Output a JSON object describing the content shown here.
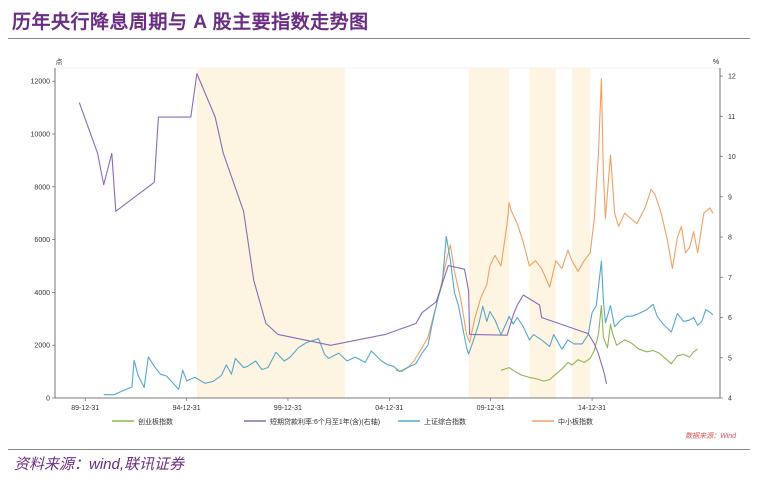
{
  "title": "历年央行降息周期与 A 股主要指数走势图",
  "footer": "资料来源：wind,联讯证券",
  "chart_data": {
    "type": "line",
    "x_tick_labels": [
      "89-12-31",
      "94-12-31",
      "99-12-31",
      "04-12-31",
      "09-12-31",
      "14-12-31"
    ],
    "left_axis": {
      "unit": "点",
      "ticks": [
        0,
        2000,
        4000,
        6000,
        8000,
        10000,
        12000
      ],
      "ylim": [
        0,
        12500
      ]
    },
    "right_axis": {
      "unit": "%",
      "ticks": [
        4,
        5,
        6,
        7,
        8,
        9,
        10,
        11,
        12
      ],
      "ylim": [
        4,
        12.2
      ]
    },
    "rate_cut_periods": [
      [
        1995.5,
        2002.8
      ],
      [
        2008.9,
        2010.9
      ],
      [
        2011.9,
        2013.2
      ],
      [
        2014.0,
        2014.9
      ]
    ],
    "series": [
      {
        "name": "创业板指数",
        "axis": "left",
        "color": "#8db553",
        "points": [
          [
            2010.5,
            1050
          ],
          [
            2010.9,
            1150
          ],
          [
            2011.2,
            1000
          ],
          [
            2011.5,
            870
          ],
          [
            2011.9,
            780
          ],
          [
            2012.3,
            720
          ],
          [
            2012.6,
            640
          ],
          [
            2012.9,
            700
          ],
          [
            2013.2,
            900
          ],
          [
            2013.5,
            1100
          ],
          [
            2013.8,
            1350
          ],
          [
            2014.0,
            1250
          ],
          [
            2014.3,
            1450
          ],
          [
            2014.6,
            1350
          ],
          [
            2014.9,
            1500
          ],
          [
            2015.1,
            1800
          ],
          [
            2015.3,
            2400
          ],
          [
            2015.45,
            3500
          ],
          [
            2015.55,
            2300
          ],
          [
            2015.75,
            1900
          ],
          [
            2015.9,
            2800
          ],
          [
            2016.0,
            2450
          ],
          [
            2016.2,
            2000
          ],
          [
            2016.6,
            2200
          ],
          [
            2016.9,
            2100
          ],
          [
            2017.3,
            1850
          ],
          [
            2017.7,
            1750
          ],
          [
            2018.0,
            1800
          ],
          [
            2018.3,
            1700
          ],
          [
            2018.6,
            1500
          ],
          [
            2018.9,
            1300
          ],
          [
            2019.2,
            1600
          ],
          [
            2019.5,
            1650
          ],
          [
            2019.8,
            1550
          ],
          [
            2020.0,
            1750
          ],
          [
            2020.2,
            1850
          ]
        ]
      },
      {
        "name": "短期贷款利率:6个月至1年(含)(右轴)",
        "axis": "right",
        "color": "#8a6cb5",
        "points": [
          [
            1989.7,
            11.34
          ],
          [
            1990.6,
            10.08
          ],
          [
            1990.9,
            9.3
          ],
          [
            1991.3,
            10.08
          ],
          [
            1991.5,
            8.64
          ],
          [
            1993.4,
            9.36
          ],
          [
            1993.6,
            10.98
          ],
          [
            1995.2,
            10.98
          ],
          [
            1995.5,
            12.06
          ],
          [
            1996.4,
            10.98
          ],
          [
            1996.8,
            10.08
          ],
          [
            1997.8,
            8.64
          ],
          [
            1998.3,
            6.93
          ],
          [
            1998.9,
            5.85
          ],
          [
            1999.5,
            5.58
          ],
          [
            2002.1,
            5.31
          ],
          [
            2004.8,
            5.58
          ],
          [
            2006.3,
            5.85
          ],
          [
            2006.6,
            6.12
          ],
          [
            2007.3,
            6.39
          ],
          [
            2007.6,
            6.84
          ],
          [
            2007.9,
            7.29
          ],
          [
            2008.7,
            7.2
          ],
          [
            2008.8,
            6.93
          ],
          [
            2008.9,
            6.66
          ],
          [
            2008.95,
            5.58
          ],
          [
            2010.8,
            5.56
          ],
          [
            2011.1,
            6.06
          ],
          [
            2011.3,
            6.31
          ],
          [
            2011.6,
            6.56
          ],
          [
            2012.4,
            6.31
          ],
          [
            2012.5,
            6.0
          ],
          [
            2014.8,
            5.6
          ],
          [
            2015.1,
            5.35
          ],
          [
            2015.3,
            5.1
          ],
          [
            2015.45,
            4.85
          ],
          [
            2015.6,
            4.6
          ],
          [
            2015.7,
            4.35
          ]
        ]
      },
      {
        "name": "上证综合指数",
        "axis": "left",
        "color": "#55a8cc",
        "points": [
          [
            1990.9,
            127
          ],
          [
            1991.4,
            120
          ],
          [
            1991.9,
            292
          ],
          [
            1992.3,
            420
          ],
          [
            1992.4,
            1429
          ],
          [
            1992.6,
            850
          ],
          [
            1992.9,
            400
          ],
          [
            1993.1,
            1558
          ],
          [
            1993.4,
            1200
          ],
          [
            1993.7,
            900
          ],
          [
            1994.0,
            833
          ],
          [
            1994.6,
            325
          ],
          [
            1994.8,
            1052
          ],
          [
            1995.0,
            647
          ],
          [
            1995.4,
            780
          ],
          [
            1995.9,
            555
          ],
          [
            1996.3,
            630
          ],
          [
            1996.7,
            850
          ],
          [
            1996.95,
            1258
          ],
          [
            1997.2,
            900
          ],
          [
            1997.4,
            1500
          ],
          [
            1997.8,
            1150
          ],
          [
            1998.0,
            1200
          ],
          [
            1998.4,
            1400
          ],
          [
            1998.7,
            1080
          ],
          [
            1999.0,
            1150
          ],
          [
            1999.4,
            1730
          ],
          [
            1999.8,
            1400
          ],
          [
            2000.1,
            1550
          ],
          [
            2000.5,
            1900
          ],
          [
            2000.9,
            2100
          ],
          [
            2001.5,
            2245
          ],
          [
            2001.8,
            1650
          ],
          [
            2002.0,
            1500
          ],
          [
            2002.5,
            1700
          ],
          [
            2002.9,
            1400
          ],
          [
            2003.3,
            1550
          ],
          [
            2003.8,
            1350
          ],
          [
            2004.1,
            1780
          ],
          [
            2004.6,
            1400
          ],
          [
            2004.9,
            1260
          ],
          [
            2005.2,
            1200
          ],
          [
            2005.5,
            1000
          ],
          [
            2005.9,
            1160
          ],
          [
            2006.3,
            1300
          ],
          [
            2006.6,
            1700
          ],
          [
            2006.9,
            2000
          ],
          [
            2007.1,
            2800
          ],
          [
            2007.4,
            3800
          ],
          [
            2007.6,
            4300
          ],
          [
            2007.8,
            6124
          ],
          [
            2008.0,
            5200
          ],
          [
            2008.2,
            4000
          ],
          [
            2008.4,
            3500
          ],
          [
            2008.6,
            2700
          ],
          [
            2008.8,
            1900
          ],
          [
            2008.9,
            1664
          ],
          [
            2009.1,
            2100
          ],
          [
            2009.4,
            2800
          ],
          [
            2009.6,
            3478
          ],
          [
            2009.8,
            2900
          ],
          [
            2009.95,
            3277
          ],
          [
            2010.2,
            2950
          ],
          [
            2010.5,
            2400
          ],
          [
            2010.8,
            2900
          ],
          [
            2010.9,
            3100
          ],
          [
            2011.1,
            2800
          ],
          [
            2011.3,
            3050
          ],
          [
            2011.6,
            2700
          ],
          [
            2011.9,
            2200
          ],
          [
            2012.1,
            2400
          ],
          [
            2012.5,
            2200
          ],
          [
            2012.9,
            1950
          ],
          [
            2013.1,
            2400
          ],
          [
            2013.5,
            1850
          ],
          [
            2013.8,
            2200
          ],
          [
            2014.1,
            2050
          ],
          [
            2014.5,
            2050
          ],
          [
            2014.8,
            2400
          ],
          [
            2014.99,
            3234
          ],
          [
            2015.2,
            3500
          ],
          [
            2015.45,
            5178
          ],
          [
            2015.55,
            3700
          ],
          [
            2015.65,
            2850
          ],
          [
            2015.9,
            3500
          ],
          [
            2016.1,
            2700
          ],
          [
            2016.4,
            2950
          ],
          [
            2016.7,
            3100
          ],
          [
            2016.95,
            3100
          ],
          [
            2017.3,
            3200
          ],
          [
            2017.7,
            3350
          ],
          [
            2018.0,
            3550
          ],
          [
            2018.2,
            3100
          ],
          [
            2018.5,
            2800
          ],
          [
            2018.9,
            2500
          ],
          [
            2019.2,
            3200
          ],
          [
            2019.5,
            2900
          ],
          [
            2019.8,
            2950
          ],
          [
            2020.0,
            3050
          ],
          [
            2020.2,
            2750
          ],
          [
            2020.4,
            2900
          ],
          [
            2020.6,
            3350
          ],
          [
            2020.8,
            3250
          ],
          [
            2020.95,
            3150
          ]
        ]
      },
      {
        "name": "中小板指数",
        "axis": "left",
        "color": "#f0a064",
        "points": [
          [
            2005.3,
            1050
          ],
          [
            2005.6,
            1000
          ],
          [
            2005.9,
            1150
          ],
          [
            2006.2,
            1400
          ],
          [
            2006.6,
            1900
          ],
          [
            2006.9,
            2300
          ],
          [
            2007.2,
            3200
          ],
          [
            2007.5,
            4100
          ],
          [
            2007.8,
            5200
          ],
          [
            2008.0,
            5800
          ],
          [
            2008.2,
            4800
          ],
          [
            2008.5,
            3800
          ],
          [
            2008.8,
            2400
          ],
          [
            2008.95,
            2100
          ],
          [
            2009.2,
            3000
          ],
          [
            2009.5,
            3800
          ],
          [
            2009.8,
            4300
          ],
          [
            2009.95,
            5000
          ],
          [
            2010.2,
            5400
          ],
          [
            2010.5,
            5000
          ],
          [
            2010.8,
            6600
          ],
          [
            2010.9,
            7400
          ],
          [
            2011.0,
            7100
          ],
          [
            2011.3,
            6600
          ],
          [
            2011.6,
            5900
          ],
          [
            2011.9,
            5000
          ],
          [
            2012.2,
            5200
          ],
          [
            2012.5,
            4900
          ],
          [
            2012.9,
            4200
          ],
          [
            2013.2,
            5200
          ],
          [
            2013.5,
            4900
          ],
          [
            2013.8,
            5600
          ],
          [
            2014.0,
            5200
          ],
          [
            2014.3,
            4800
          ],
          [
            2014.6,
            5200
          ],
          [
            2014.9,
            5500
          ],
          [
            2015.1,
            6800
          ],
          [
            2015.3,
            9200
          ],
          [
            2015.45,
            12100
          ],
          [
            2015.55,
            8500
          ],
          [
            2015.65,
            6800
          ],
          [
            2015.9,
            9200
          ],
          [
            2016.1,
            7000
          ],
          [
            2016.3,
            6500
          ],
          [
            2016.6,
            7000
          ],
          [
            2016.9,
            6800
          ],
          [
            2017.2,
            6600
          ],
          [
            2017.6,
            7200
          ],
          [
            2017.9,
            7900
          ],
          [
            2018.1,
            7700
          ],
          [
            2018.4,
            7000
          ],
          [
            2018.7,
            6000
          ],
          [
            2018.95,
            4900
          ],
          [
            2019.2,
            6100
          ],
          [
            2019.4,
            6500
          ],
          [
            2019.6,
            5500
          ],
          [
            2019.8,
            5700
          ],
          [
            2020.0,
            6300
          ],
          [
            2020.2,
            5500
          ],
          [
            2020.5,
            7000
          ],
          [
            2020.8,
            7200
          ],
          [
            2020.95,
            7000
          ]
        ]
      }
    ],
    "source_note": "数据来源：Wind"
  }
}
